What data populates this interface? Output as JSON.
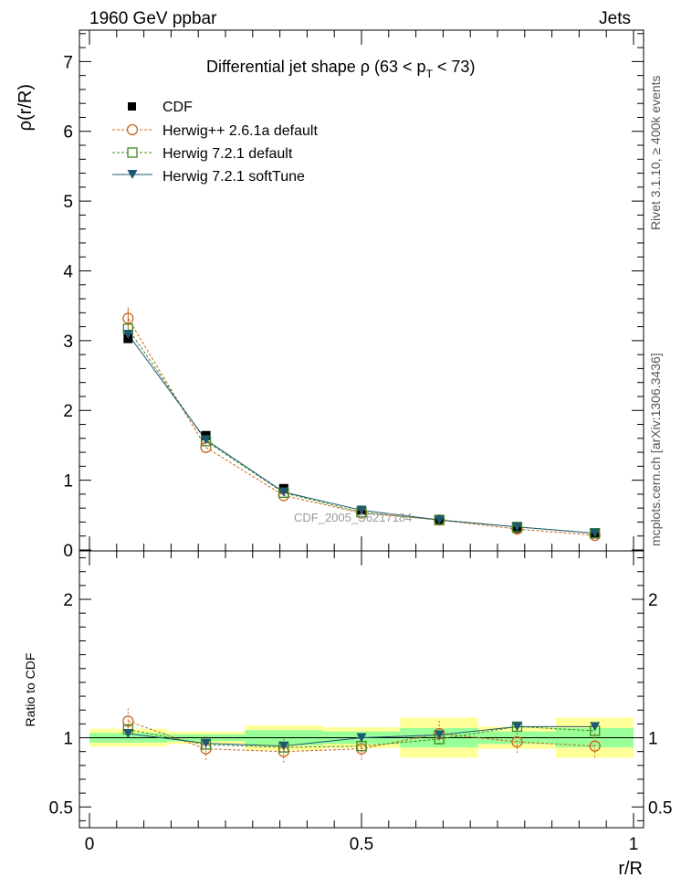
{
  "header": {
    "left": "1960 GeV ppbar",
    "right": "Jets"
  },
  "side_texts": {
    "rivet": "Rivet 3.1.10, ≥ 400k events",
    "mcplots": "mcplots.cern.ch [arXiv:1306.3436]"
  },
  "chart_data": [
    {
      "type": "line",
      "panel": "main",
      "title_main": "Differential jet shape  ρ (63 < p",
      "title_sub": "T",
      "title_end": " < 73)",
      "ylabel": "ρ(r/R)",
      "watermark": "CDF_2005_S6217184",
      "xlim": [
        0,
        1
      ],
      "ylim": [
        0,
        7.45
      ],
      "y_ticks": [
        0,
        1,
        2,
        3,
        4,
        5,
        6,
        7
      ],
      "y_tick_labels": [
        "0",
        "1",
        "2",
        "3",
        "4",
        "5",
        "6",
        "7"
      ],
      "x": [
        0.071,
        0.214,
        0.357,
        0.5,
        0.643,
        0.786,
        0.929
      ],
      "legend_placement": "top-left",
      "series": [
        {
          "name": "CDF",
          "marker": "filled-square",
          "color": "#000000",
          "values": [
            3.03,
            1.64,
            0.88,
            0.57,
            0.42,
            0.31,
            0.23
          ]
        },
        {
          "name": "Herwig++ 2.6.1a default",
          "marker": "open-circle",
          "color": "#c8651b",
          "dash": "dashed",
          "values": [
            3.32,
            1.47,
            0.78,
            0.53,
            0.43,
            0.3,
            0.21
          ]
        },
        {
          "name": "Herwig 7.2.1 default",
          "marker": "open-square",
          "color": "#3f8a1f",
          "dash": "dashed",
          "values": [
            3.17,
            1.56,
            0.82,
            0.54,
            0.43,
            0.33,
            0.24
          ]
        },
        {
          "name": "Herwig 7.2.1 softTune",
          "marker": "filled-triangle-down",
          "color": "#1c5a73",
          "dash": "solid",
          "values": [
            3.09,
            1.58,
            0.83,
            0.57,
            0.43,
            0.33,
            0.24
          ]
        }
      ]
    },
    {
      "type": "line",
      "panel": "ratio",
      "ylabel": "Ratio to CDF",
      "xlabel": "r/R",
      "xlim": [
        0,
        1
      ],
      "ylim": [
        0.35,
        2.35
      ],
      "y_ticks": [
        0.5,
        1,
        2
      ],
      "y_tick_labels": [
        "0.5",
        "1",
        "2"
      ],
      "x_ticks": [
        0,
        0.5,
        1
      ],
      "x_tick_labels": [
        "0",
        "0.5",
        "1"
      ],
      "x": [
        0.071,
        0.214,
        0.357,
        0.5,
        0.643,
        0.786,
        0.929
      ],
      "bin_edges": [
        0,
        0.143,
        0.286,
        0.429,
        0.571,
        0.714,
        0.857,
        1.0
      ],
      "band_inner": [
        0.035,
        0.025,
        0.055,
        0.045,
        0.07,
        0.045,
        0.07
      ],
      "band_outer": [
        0.065,
        0.045,
        0.09,
        0.075,
        0.145,
        0.08,
        0.145
      ],
      "band_colors": {
        "inner": "#99ff99",
        "outer": "#ffff99"
      },
      "series": [
        {
          "name": "Herwig++ 2.6.1a default",
          "color": "#c8651b",
          "marker": "open-circle",
          "values": [
            1.12,
            0.92,
            0.9,
            0.92,
            1.03,
            0.97,
            0.94
          ]
        },
        {
          "name": "Herwig 7.2.1 default",
          "color": "#3f8a1f",
          "marker": "open-square",
          "values": [
            1.06,
            0.95,
            0.93,
            0.94,
            0.99,
            1.08,
            1.05
          ]
        },
        {
          "name": "Herwig 7.2.1 softTune",
          "color": "#1c5a73",
          "marker": "filled-triangle-down",
          "values": [
            1.03,
            0.96,
            0.94,
            1.0,
            1.02,
            1.08,
            1.08
          ]
        }
      ]
    }
  ]
}
